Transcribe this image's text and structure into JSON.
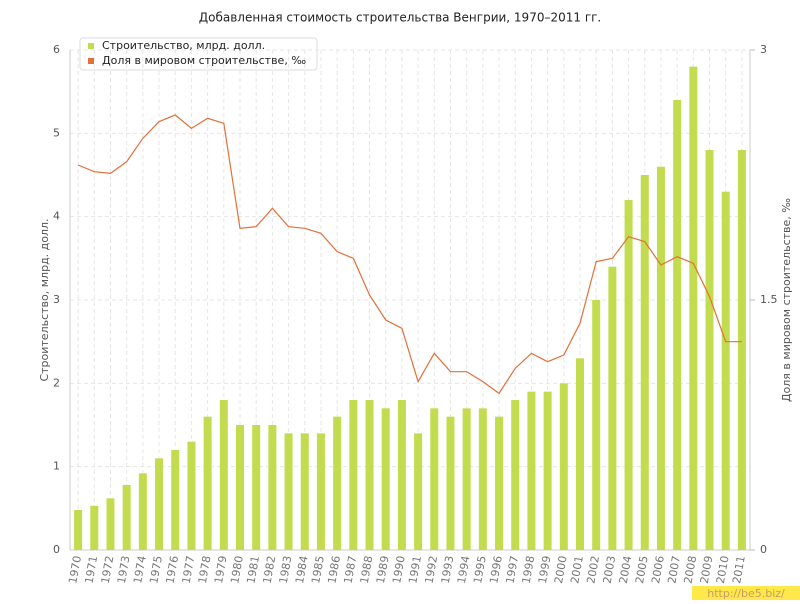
{
  "chart_data": {
    "type": "bar-line",
    "title": "Добавленная стоимость строительства Венгрии, 1970–2011 гг.",
    "y_label": "Строительство, млрд. долл.",
    "y2_label": "Доля в мировом строительстве, ‰",
    "watermark": "http://be5.biz/",
    "categories": [
      "1970",
      "1971",
      "1972",
      "1973",
      "1974",
      "1975",
      "1976",
      "1977",
      "1978",
      "1979",
      "1980",
      "1981",
      "1982",
      "1983",
      "1984",
      "1985",
      "1986",
      "1987",
      "1988",
      "1989",
      "1990",
      "1991",
      "1992",
      "1993",
      "1994",
      "1995",
      "1996",
      "1997",
      "1998",
      "1999",
      "2000",
      "2001",
      "2002",
      "2003",
      "2004",
      "2005",
      "2006",
      "2007",
      "2008",
      "2009",
      "2010",
      "2011"
    ],
    "series": [
      {
        "name": "Строительство, млрд. долл.",
        "type": "bar",
        "color": "#c3dc4f",
        "values": [
          0.48,
          0.53,
          0.62,
          0.78,
          0.92,
          1.1,
          1.2,
          1.3,
          1.6,
          1.8,
          1.5,
          1.5,
          1.5,
          1.4,
          1.4,
          1.4,
          1.6,
          1.8,
          1.8,
          1.7,
          1.8,
          1.4,
          1.7,
          1.6,
          1.7,
          1.7,
          1.6,
          1.8,
          1.9,
          1.9,
          2.0,
          2.3,
          3.0,
          3.4,
          4.2,
          4.5,
          4.6,
          5.4,
          5.8,
          4.8,
          4.3,
          4.8
        ]
      },
      {
        "name": "Доля в мировом строительстве, ‰",
        "type": "line",
        "axis": "y2",
        "color": "#e2703a",
        "values": [
          2.31,
          2.27,
          2.26,
          2.33,
          2.47,
          2.57,
          2.61,
          2.53,
          2.59,
          2.56,
          1.93,
          1.94,
          2.05,
          1.94,
          1.93,
          1.9,
          1.79,
          1.75,
          1.53,
          1.38,
          1.33,
          1.01,
          1.18,
          1.07,
          1.07,
          1.01,
          0.94,
          1.09,
          1.18,
          1.13,
          1.17,
          1.36,
          1.73,
          1.75,
          1.88,
          1.85,
          1.71,
          1.76,
          1.72,
          1.52,
          1.25,
          1.25
        ]
      }
    ],
    "ylim": [
      0,
      6
    ],
    "yticks": [
      0,
      1,
      2,
      3,
      4,
      5,
      6
    ],
    "y2lim": [
      0,
      3
    ],
    "y2ticks": [
      0,
      1.5,
      3
    ],
    "grid": true,
    "legend": "top-left"
  }
}
